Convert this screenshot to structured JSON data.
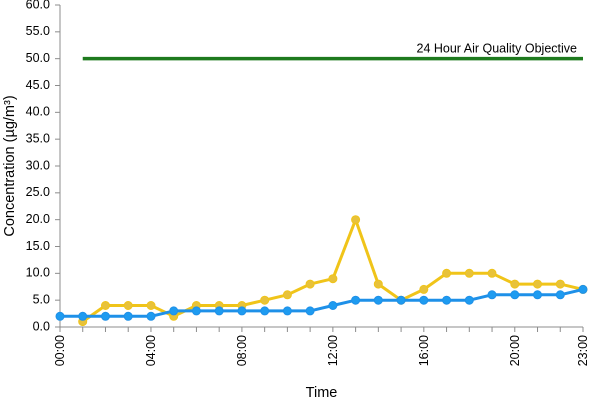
{
  "chart_data": {
    "type": "line",
    "xlabel": "Time",
    "ylabel": "Concentration (µg/m³)",
    "ylim": [
      0,
      60
    ],
    "y_ticks": [
      "0.0",
      "5.0",
      "10.0",
      "15.0",
      "20.0",
      "25.0",
      "30.0",
      "35.0",
      "40.0",
      "45.0",
      "50.0",
      "55.0",
      "60.0"
    ],
    "y_tick_values": [
      0,
      5,
      10,
      15,
      20,
      25,
      30,
      35,
      40,
      45,
      50,
      55,
      60
    ],
    "x_tick_labels": [
      "00:00",
      "04:00",
      "08:00",
      "12:00",
      "16:00",
      "20:00",
      "23:00"
    ],
    "x_tick_hours": [
      0,
      4,
      8,
      12,
      16,
      20,
      23
    ],
    "x": [
      0,
      1,
      2,
      3,
      4,
      5,
      6,
      7,
      8,
      9,
      10,
      11,
      12,
      13,
      14,
      15,
      16,
      17,
      18,
      19,
      20,
      21,
      22,
      23
    ],
    "grid": false,
    "series": [
      {
        "color": "#F0C419",
        "marker_color": "#E8C23A",
        "values": [
          null,
          1,
          4,
          4,
          4,
          2,
          4,
          4,
          4,
          5,
          6,
          8,
          9,
          20,
          8,
          5,
          7,
          10,
          10,
          10,
          8,
          8,
          8,
          7
        ]
      },
      {
        "color": "#1E90E8",
        "marker_color": "#1E9BF0",
        "values": [
          2,
          2,
          2,
          2,
          2,
          3,
          3,
          3,
          3,
          3,
          3,
          3,
          4,
          5,
          5,
          5,
          5,
          5,
          5,
          6,
          6,
          6,
          6,
          7
        ]
      }
    ],
    "reference_line": {
      "label": "24 Hour Air Quality Objective",
      "value": 50,
      "x_start": 1,
      "x_end": 23,
      "color": "#1E7A1E"
    }
  }
}
